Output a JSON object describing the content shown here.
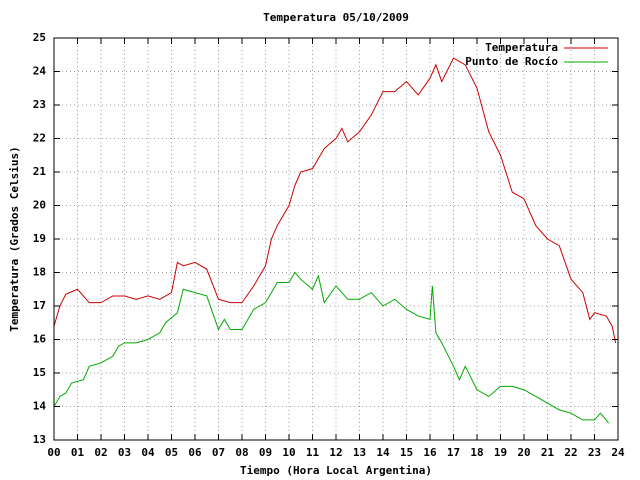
{
  "chart_data": {
    "type": "line",
    "title": "Temperatura 05/10/2009",
    "x_label": "Tiempo (Hora Local Argentina)",
    "y_label": "Temperatura (Grados Celsius)",
    "xlim": [
      0,
      24
    ],
    "ylim": [
      13,
      25
    ],
    "xticks": [
      {
        "value": 0,
        "label": "00"
      },
      {
        "value": 1,
        "label": "01"
      },
      {
        "value": 2,
        "label": "02"
      },
      {
        "value": 3,
        "label": "03"
      },
      {
        "value": 4,
        "label": "04"
      },
      {
        "value": 5,
        "label": "05"
      },
      {
        "value": 6,
        "label": "06"
      },
      {
        "value": 7,
        "label": "07"
      },
      {
        "value": 8,
        "label": "08"
      },
      {
        "value": 9,
        "label": "09"
      },
      10,
      11,
      12,
      13,
      14,
      15,
      16,
      17,
      18,
      19,
      20,
      21,
      22,
      23,
      24
    ],
    "yticks": [
      13,
      14,
      15,
      16,
      17,
      18,
      19,
      20,
      21,
      22,
      23,
      24,
      25
    ],
    "grid": true,
    "legend": "top-right",
    "series": [
      {
        "name": "Temperatura",
        "color": "#cc0000",
        "x": [
          0,
          0.25,
          0.5,
          1.0,
          1.25,
          1.5,
          2.0,
          2.5,
          3.0,
          3.5,
          4.0,
          4.5,
          5.0,
          5.25,
          5.5,
          6.0,
          6.5,
          7.0,
          7.5,
          8.0,
          8.5,
          9.0,
          9.25,
          9.5,
          10.0,
          10.25,
          10.5,
          11.0,
          11.5,
          12.0,
          12.25,
          12.5,
          13.0,
          13.5,
          14.0,
          14.5,
          15.0,
          15.5,
          16.0,
          16.25,
          16.5,
          17.0,
          17.5,
          18.0,
          18.5,
          19.0,
          19.5,
          20.0,
          20.5,
          21.0,
          21.5,
          22.0,
          22.5,
          22.8,
          23.0,
          23.5,
          23.75,
          23.9
        ],
        "values": [
          16.4,
          17.0,
          17.35,
          17.5,
          17.3,
          17.1,
          17.1,
          17.3,
          17.3,
          17.2,
          17.3,
          17.2,
          17.4,
          18.3,
          18.2,
          18.3,
          18.1,
          17.2,
          17.1,
          17.1,
          17.6,
          18.2,
          19.0,
          19.4,
          20.0,
          20.6,
          21.0,
          21.1,
          21.7,
          22.0,
          22.3,
          21.9,
          22.2,
          22.7,
          23.4,
          23.4,
          23.7,
          23.3,
          23.8,
          24.2,
          23.7,
          24.4,
          24.2,
          23.5,
          22.2,
          21.5,
          20.4,
          20.2,
          19.4,
          19.0,
          18.8,
          17.8,
          17.4,
          16.6,
          16.8,
          16.7,
          16.4,
          15.9
        ]
      },
      {
        "name": "Punto de Rocío",
        "color": "#00aa00",
        "x": [
          0,
          0.25,
          0.5,
          0.75,
          1.25,
          1.5,
          2.0,
          2.5,
          2.75,
          3.0,
          3.5,
          4.0,
          4.5,
          4.75,
          5.25,
          5.5,
          6.0,
          6.5,
          7.0,
          7.25,
          7.5,
          8.0,
          8.5,
          9.0,
          9.5,
          10.0,
          10.25,
          10.5,
          11.0,
          11.25,
          11.5,
          12.0,
          12.5,
          13.0,
          13.5,
          14.0,
          14.5,
          15.0,
          15.5,
          16.0,
          16.1,
          16.25,
          16.5,
          17.0,
          17.25,
          17.5,
          18.0,
          18.5,
          19.0,
          19.5,
          20.0,
          20.5,
          21.0,
          21.5,
          22.0,
          22.5,
          23.0,
          23.25,
          23.5,
          23.6
        ],
        "values": [
          14.0,
          14.3,
          14.4,
          14.7,
          14.8,
          15.2,
          15.3,
          15.5,
          15.8,
          15.9,
          15.9,
          16.0,
          16.2,
          16.5,
          16.8,
          17.5,
          17.4,
          17.3,
          16.3,
          16.6,
          16.3,
          16.3,
          16.9,
          17.1,
          17.7,
          17.7,
          18.0,
          17.8,
          17.5,
          17.9,
          17.1,
          17.6,
          17.2,
          17.2,
          17.4,
          17.0,
          17.2,
          16.9,
          16.7,
          16.6,
          17.6,
          16.2,
          15.9,
          15.2,
          14.8,
          15.2,
          14.5,
          14.3,
          14.6,
          14.6,
          14.5,
          14.3,
          14.1,
          13.9,
          13.8,
          13.6,
          13.6,
          13.8,
          13.6,
          13.5
        ]
      }
    ]
  }
}
